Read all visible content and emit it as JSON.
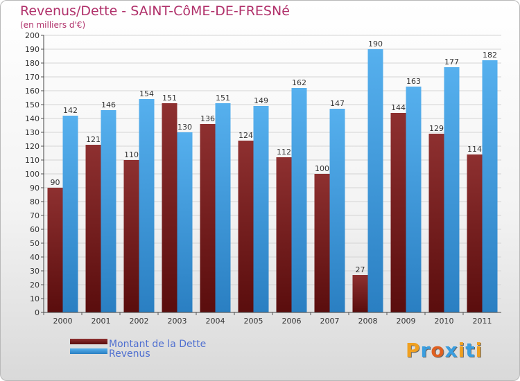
{
  "title": "Revenus/Dette - SAINT-CôME-DE-FRESNé",
  "subtitle": "(en milliers d'€)",
  "logo": "Proxiti",
  "colors": {
    "dette": "#7a1f1f",
    "revenus": "#3f9ee2",
    "title": "#b0306a",
    "legend_text": "#4f6fd0"
  },
  "chart_data": {
    "type": "bar",
    "categories": [
      "2000",
      "2001",
      "2002",
      "2003",
      "2004",
      "2005",
      "2006",
      "2007",
      "2008",
      "2009",
      "2010",
      "2011"
    ],
    "series": [
      {
        "name": "Montant de la Dette",
        "values": [
          90,
          121,
          110,
          151,
          136,
          124,
          112,
          100,
          27,
          144,
          129,
          114
        ]
      },
      {
        "name": "Revenus",
        "values": [
          142,
          146,
          154,
          130,
          151,
          149,
          162,
          147,
          190,
          163,
          177,
          182
        ]
      }
    ],
    "ylim": [
      0,
      200
    ],
    "ytick_step": 10,
    "grid": true,
    "legend": "bottom-left"
  }
}
